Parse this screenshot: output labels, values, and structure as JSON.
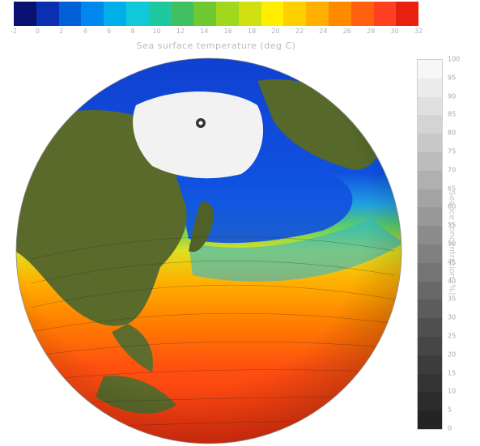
{
  "colorbar_top": {
    "title": "Sea surface temperature (deg C)",
    "ticks": [
      "-2",
      "0",
      "2",
      "4",
      "6",
      "8",
      "10",
      "12",
      "14",
      "16",
      "18",
      "20",
      "22",
      "24",
      "26",
      "28",
      "30",
      "32"
    ],
    "segment_colors": [
      "#081070",
      "#0a2fb0",
      "#0060d8",
      "#0088ee",
      "#00aee8",
      "#10c8d8",
      "#20c8a0",
      "#40c060",
      "#70c830",
      "#a0d820",
      "#d0e010",
      "#ffee00",
      "#ffd000",
      "#ffb000",
      "#ff8a00",
      "#ff6010",
      "#ff4020",
      "#e82010"
    ]
  },
  "colorbar_right": {
    "title": "Sea ice concentration (%)",
    "ticks": [
      "100",
      "95",
      "90",
      "85",
      "80",
      "75",
      "70",
      "65",
      "60",
      "55",
      "50",
      "45",
      "40",
      "35",
      "30",
      "25",
      "20",
      "15",
      "10",
      "5",
      "0"
    ],
    "segment_colors": [
      "#f7f7f7",
      "#ececec",
      "#e0e0e0",
      "#d4d4d4",
      "#c8c8c8",
      "#bcbcbc",
      "#b0b0b0",
      "#a4a4a4",
      "#989898",
      "#8c8c8c",
      "#808080",
      "#747474",
      "#686868",
      "#5c5c5c",
      "#505050",
      "#464646",
      "#3c3c3c",
      "#343434",
      "#2c2c2c",
      "#242424"
    ]
  },
  "colors": {
    "land": "#5a6a2a",
    "sea_ice": "#f2f2f2"
  }
}
